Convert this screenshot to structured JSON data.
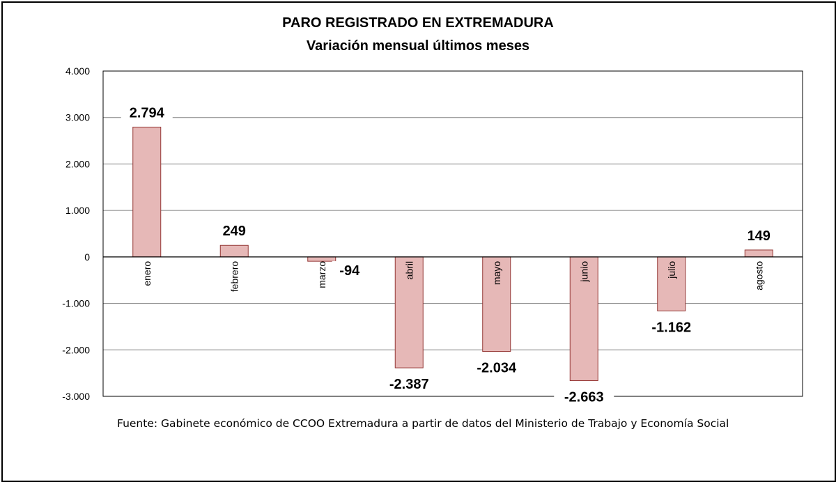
{
  "chart_data": {
    "type": "bar",
    "title": "PARO REGISTRADO EN EXTREMADURA",
    "subtitle": "Variación mensual últimos meses",
    "categories": [
      "enero",
      "febrero",
      "marzo",
      "abril",
      "mayo",
      "junio",
      "julio",
      "agosto"
    ],
    "values": [
      2794,
      249,
      -94,
      -2387,
      -2034,
      -2663,
      -1162,
      149
    ],
    "value_labels": [
      "2.794",
      "249",
      "-94",
      "-2.387",
      "-2.034",
      "-2.663",
      "-1.162",
      "149"
    ],
    "y_ticks": [
      4000,
      3000,
      2000,
      1000,
      0,
      -1000,
      -2000,
      -3000
    ],
    "y_tick_labels": [
      "4.000",
      "3.000",
      "2.000",
      "1.000",
      "0",
      "-1.000",
      "-2.000",
      "-3.000"
    ],
    "ylim": [
      -3000,
      4000
    ],
    "grid": true,
    "bar_color": "#e6b8b7",
    "bar_edge_color": "#943634"
  },
  "source": "Fuente: Gabinete económico de CCOO Extremadura a partir de datos del Ministerio de Trabajo y Economía Social"
}
